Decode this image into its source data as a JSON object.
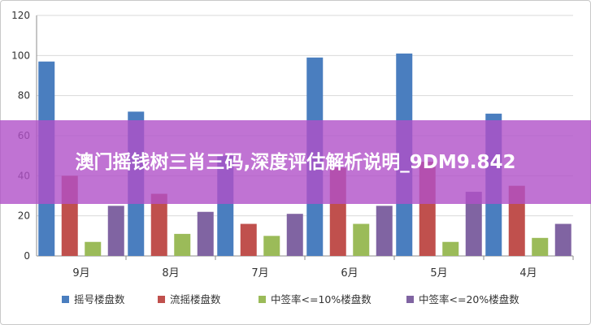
{
  "overlay": {
    "title": "澳门摇钱树三肖三码,深度评估解析说明_9DM9.842",
    "color": "#b050c8"
  },
  "chart_data": {
    "type": "bar",
    "categories": [
      "9月",
      "8月",
      "7月",
      "6月",
      "5月",
      "4月"
    ],
    "series": [
      {
        "name": "摇号楼盘数",
        "color": "#4a7ebf",
        "values": [
          97,
          72,
          50,
          99,
          101,
          71
        ]
      },
      {
        "name": "流摇楼盘数",
        "color": "#c0504d",
        "values": [
          40,
          31,
          16,
          44,
          47,
          35
        ]
      },
      {
        "name": "中签率<=10%楼盘数",
        "color": "#9bbb59",
        "values": [
          7,
          11,
          10,
          16,
          7,
          9
        ]
      },
      {
        "name": "中签率<=20%楼盘数",
        "color": "#8064a2",
        "values": [
          25,
          22,
          21,
          25,
          32,
          16
        ]
      }
    ],
    "yticks": [
      0,
      20,
      40,
      60,
      80,
      100,
      120
    ],
    "ylim": [
      0,
      120
    ],
    "grid": true,
    "legend": "bottom",
    "title": "",
    "xlabel": "",
    "ylabel": ""
  }
}
